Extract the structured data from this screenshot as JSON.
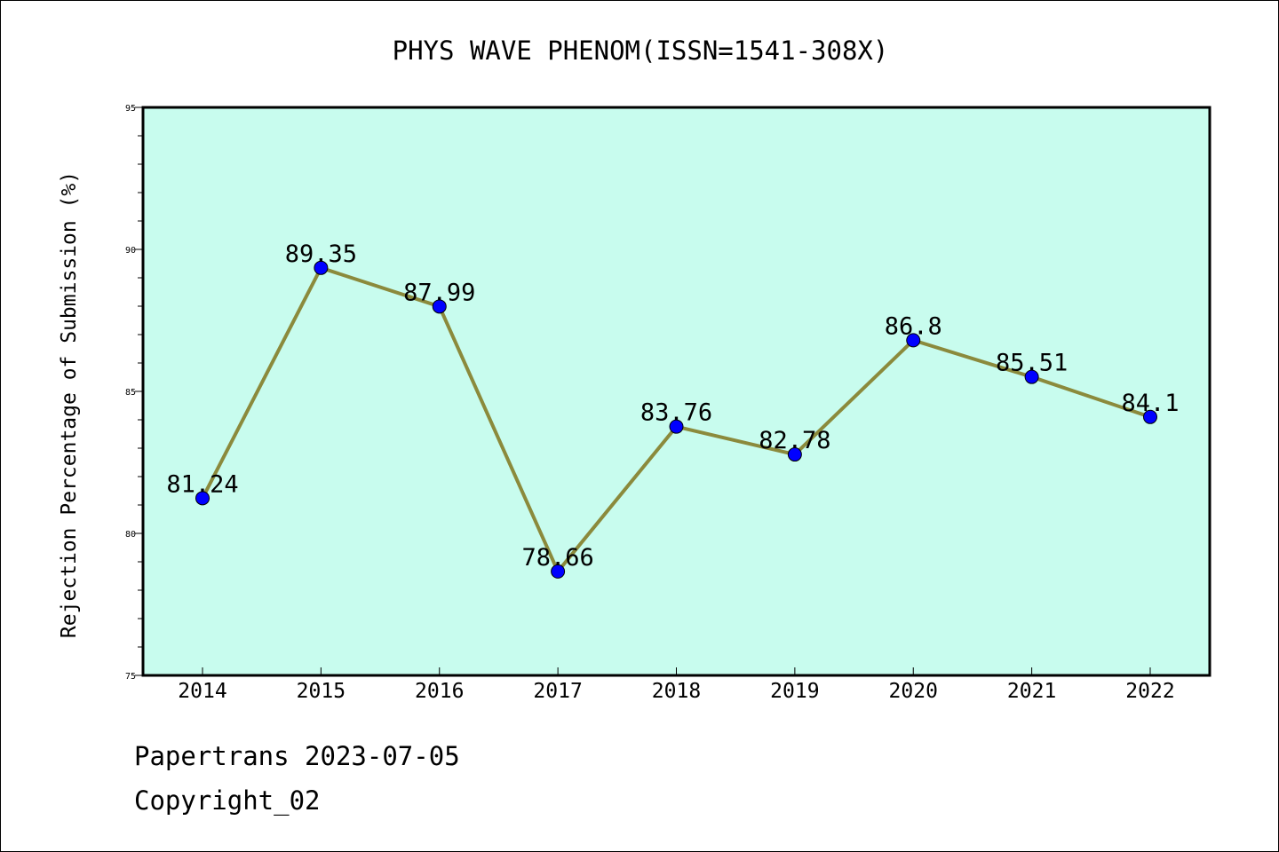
{
  "chart_data": {
    "type": "line",
    "title": "PHYS WAVE PHENOM(ISSN=1541-308X)",
    "xlabel": "",
    "ylabel": "Rejection Percentage of Submission (%)",
    "categories": [
      "2014",
      "2015",
      "2016",
      "2017",
      "2018",
      "2019",
      "2020",
      "2021",
      "2022"
    ],
    "series": [
      {
        "values": [
          81.24,
          89.35,
          87.99,
          78.66,
          83.76,
          82.78,
          86.8,
          85.51,
          84.1
        ],
        "labels": [
          "81.24",
          "89.35",
          "87.99",
          "78.66",
          "83.76",
          "82.78",
          "86.8",
          "85.51",
          "84.1"
        ]
      }
    ],
    "ylim": [
      75,
      95
    ],
    "yticks": [
      "75",
      "80",
      "85",
      "90",
      "95"
    ],
    "grid": false,
    "colors": {
      "plot_background": "#c8fcee",
      "line": "#8b8a3c",
      "marker": "#0000ff"
    }
  },
  "footer": {
    "line1": "Papertrans 2023-07-05",
    "line2": "Copyright_02"
  }
}
